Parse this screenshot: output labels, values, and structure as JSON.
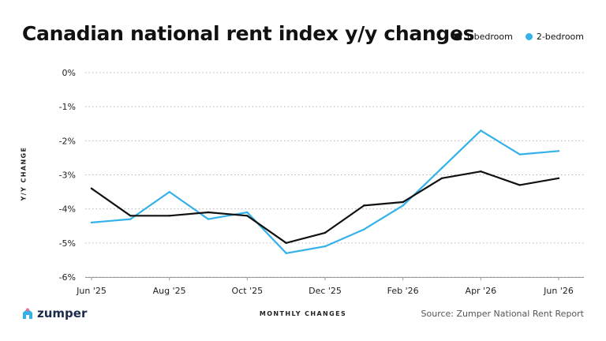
{
  "chart_data": {
    "type": "line",
    "title": "Canadian national rent index y/y changes",
    "xlabel": "MONTHLY CHANGES",
    "ylabel": "Y/Y CHANGE",
    "x": [
      "Jun '25",
      "Jul '25",
      "Aug '25",
      "Sep '25",
      "Oct '25",
      "Nov '25",
      "Dec '25",
      "Jan '26",
      "Feb '26",
      "Mar '26",
      "Apr '26",
      "May '26",
      "Jun '26"
    ],
    "x_tick_labels": [
      "Jun '25",
      "Aug '25",
      "Oct '25",
      "Dec '25",
      "Feb '26",
      "Apr '26",
      "Jun '26"
    ],
    "y_ticks": [
      0,
      -1,
      -2,
      -3,
      -4,
      -5,
      -6
    ],
    "y_tick_labels": [
      "0%",
      "-1%",
      "-2%",
      "-3%",
      "-4%",
      "-5%",
      "-6%"
    ],
    "ylim": [
      -6,
      0
    ],
    "grid": "horizontal dotted",
    "legend_position": "top-right",
    "series": [
      {
        "name": "1-bedroom",
        "color": "#111111",
        "values": [
          -3.4,
          -4.2,
          -4.2,
          -4.1,
          -4.2,
          -5.0,
          -4.7,
          -3.9,
          -3.8,
          -3.1,
          -2.9,
          -3.3,
          -3.1
        ]
      },
      {
        "name": "2-bedroom",
        "color": "#33b1e8",
        "values": [
          -4.4,
          -4.3,
          -3.5,
          -4.3,
          -4.1,
          -5.3,
          -5.1,
          -4.6,
          -3.9,
          -2.8,
          -1.7,
          -2.4,
          -2.3
        ]
      }
    ]
  },
  "footer": {
    "brand": "zumper",
    "brand_icon": "house-icon",
    "brand_color": "#33b1e8",
    "source": "Source: Zumper National Rent Report"
  }
}
